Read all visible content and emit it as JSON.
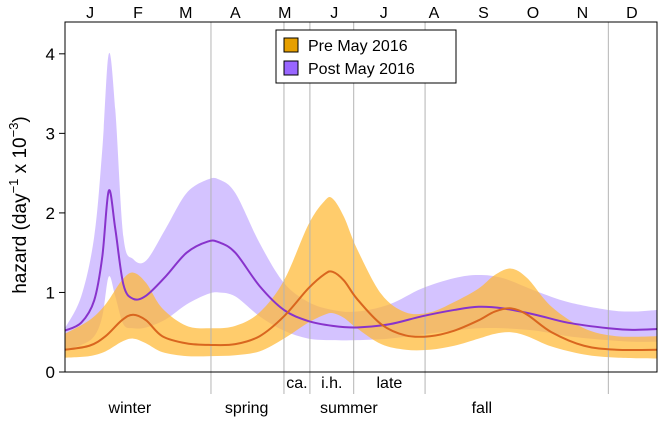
{
  "chart_data": {
    "type": "area",
    "ylabel": "hazard (day",
    "ylabel_sup1": "−1",
    "ylabel_mid": " x 10",
    "ylabel_sup2": "−3",
    "ylabel_end": ")",
    "xlim": [
      0,
      365
    ],
    "ylim": [
      0,
      4.4
    ],
    "yticks": [
      0,
      1,
      2,
      3,
      4
    ],
    "month_labels": [
      {
        "label": "J",
        "x": 15.5
      },
      {
        "label": "F",
        "x": 45
      },
      {
        "label": "M",
        "x": 74.5
      },
      {
        "label": "A",
        "x": 105
      },
      {
        "label": "M",
        "x": 135.5
      },
      {
        "label": "J",
        "x": 166
      },
      {
        "label": "J",
        "x": 196.5
      },
      {
        "label": "A",
        "x": 227.5
      },
      {
        "label": "S",
        "x": 258
      },
      {
        "label": "O",
        "x": 288.5
      },
      {
        "label": "N",
        "x": 319
      },
      {
        "label": "D",
        "x": 349.5
      }
    ],
    "season_boundaries": [
      90,
      135,
      151,
      178,
      222,
      335
    ],
    "subseason_labels": [
      {
        "label": "ca.",
        "x": 143
      },
      {
        "label": "i.h.",
        "x": 164.5
      },
      {
        "label": "late",
        "x": 200
      }
    ],
    "season_labels": [
      {
        "label": "winter",
        "x": 40
      },
      {
        "label": "spring",
        "x": 112
      },
      {
        "label": "summer",
        "x": 175
      },
      {
        "label": "fall",
        "x": 257
      }
    ],
    "legend": {
      "position": "top-center"
    },
    "series": [
      {
        "name": "Pre May 2016",
        "color": "#e69f00",
        "fill": "#ffb833",
        "line_color": "#d9661f",
        "points": [
          {
            "x": 0,
            "y": 0.28,
            "lo": 0.18,
            "hi": 0.48
          },
          {
            "x": 15,
            "y": 0.33,
            "lo": 0.2,
            "hi": 0.65
          },
          {
            "x": 25,
            "y": 0.45,
            "lo": 0.26,
            "hi": 0.85
          },
          {
            "x": 35,
            "y": 0.65,
            "lo": 0.38,
            "hi": 1.15
          },
          {
            "x": 42,
            "y": 0.72,
            "lo": 0.42,
            "hi": 1.25
          },
          {
            "x": 50,
            "y": 0.65,
            "lo": 0.36,
            "hi": 1.12
          },
          {
            "x": 60,
            "y": 0.45,
            "lo": 0.25,
            "hi": 0.8
          },
          {
            "x": 75,
            "y": 0.36,
            "lo": 0.2,
            "hi": 0.58
          },
          {
            "x": 90,
            "y": 0.34,
            "lo": 0.2,
            "hi": 0.55
          },
          {
            "x": 105,
            "y": 0.35,
            "lo": 0.21,
            "hi": 0.58
          },
          {
            "x": 120,
            "y": 0.45,
            "lo": 0.26,
            "hi": 0.75
          },
          {
            "x": 135,
            "y": 0.7,
            "lo": 0.42,
            "hi": 1.15
          },
          {
            "x": 150,
            "y": 1.05,
            "lo": 0.62,
            "hi": 1.85
          },
          {
            "x": 160,
            "y": 1.23,
            "lo": 0.72,
            "hi": 2.15
          },
          {
            "x": 165,
            "y": 1.26,
            "lo": 0.74,
            "hi": 2.18
          },
          {
            "x": 172,
            "y": 1.15,
            "lo": 0.68,
            "hi": 1.95
          },
          {
            "x": 180,
            "y": 0.92,
            "lo": 0.55,
            "hi": 1.55
          },
          {
            "x": 195,
            "y": 0.6,
            "lo": 0.35,
            "hi": 0.98
          },
          {
            "x": 210,
            "y": 0.46,
            "lo": 0.28,
            "hi": 0.75
          },
          {
            "x": 225,
            "y": 0.45,
            "lo": 0.28,
            "hi": 0.75
          },
          {
            "x": 240,
            "y": 0.52,
            "lo": 0.33,
            "hi": 0.88
          },
          {
            "x": 255,
            "y": 0.65,
            "lo": 0.42,
            "hi": 1.05
          },
          {
            "x": 265,
            "y": 0.76,
            "lo": 0.48,
            "hi": 1.22
          },
          {
            "x": 275,
            "y": 0.8,
            "lo": 0.5,
            "hi": 1.3
          },
          {
            "x": 285,
            "y": 0.72,
            "lo": 0.45,
            "hi": 1.18
          },
          {
            "x": 300,
            "y": 0.5,
            "lo": 0.32,
            "hi": 0.82
          },
          {
            "x": 320,
            "y": 0.33,
            "lo": 0.22,
            "hi": 0.55
          },
          {
            "x": 340,
            "y": 0.28,
            "lo": 0.18,
            "hi": 0.45
          },
          {
            "x": 365,
            "y": 0.28,
            "lo": 0.17,
            "hi": 0.45
          }
        ]
      },
      {
        "name": "Post May 2016",
        "color": "#9966ff",
        "fill": "#b89bff",
        "line_color": "#8833cc",
        "points": [
          {
            "x": 0,
            "y": 0.52,
            "lo": 0.28,
            "hi": 0.55
          },
          {
            "x": 10,
            "y": 0.62,
            "lo": 0.34,
            "hi": 0.95
          },
          {
            "x": 18,
            "y": 0.9,
            "lo": 0.45,
            "hi": 1.7
          },
          {
            "x": 23,
            "y": 1.45,
            "lo": 0.7,
            "hi": 2.8
          },
          {
            "x": 27,
            "y": 2.28,
            "lo": 1.2,
            "hi": 4.0
          },
          {
            "x": 31,
            "y": 1.8,
            "lo": 0.95,
            "hi": 3.3
          },
          {
            "x": 36,
            "y": 1.1,
            "lo": 0.6,
            "hi": 1.7
          },
          {
            "x": 42,
            "y": 0.92,
            "lo": 0.55,
            "hi": 1.42
          },
          {
            "x": 50,
            "y": 0.96,
            "lo": 0.56,
            "hi": 1.4
          },
          {
            "x": 62,
            "y": 1.2,
            "lo": 0.66,
            "hi": 1.8
          },
          {
            "x": 75,
            "y": 1.5,
            "lo": 0.85,
            "hi": 2.25
          },
          {
            "x": 88,
            "y": 1.64,
            "lo": 0.98,
            "hi": 2.42
          },
          {
            "x": 95,
            "y": 1.63,
            "lo": 1.0,
            "hi": 2.42
          },
          {
            "x": 105,
            "y": 1.5,
            "lo": 0.95,
            "hi": 2.25
          },
          {
            "x": 120,
            "y": 1.08,
            "lo": 0.7,
            "hi": 1.62
          },
          {
            "x": 135,
            "y": 0.78,
            "lo": 0.52,
            "hi": 1.12
          },
          {
            "x": 150,
            "y": 0.64,
            "lo": 0.42,
            "hi": 0.88
          },
          {
            "x": 165,
            "y": 0.58,
            "lo": 0.4,
            "hi": 0.78
          },
          {
            "x": 180,
            "y": 0.56,
            "lo": 0.4,
            "hi": 0.76
          },
          {
            "x": 200,
            "y": 0.6,
            "lo": 0.42,
            "hi": 0.85
          },
          {
            "x": 220,
            "y": 0.7,
            "lo": 0.47,
            "hi": 1.05
          },
          {
            "x": 240,
            "y": 0.78,
            "lo": 0.52,
            "hi": 1.18
          },
          {
            "x": 255,
            "y": 0.82,
            "lo": 0.55,
            "hi": 1.22
          },
          {
            "x": 270,
            "y": 0.8,
            "lo": 0.55,
            "hi": 1.18
          },
          {
            "x": 290,
            "y": 0.72,
            "lo": 0.52,
            "hi": 1.02
          },
          {
            "x": 310,
            "y": 0.62,
            "lo": 0.45,
            "hi": 0.88
          },
          {
            "x": 335,
            "y": 0.55,
            "lo": 0.4,
            "hi": 0.78
          },
          {
            "x": 350,
            "y": 0.53,
            "lo": 0.38,
            "hi": 0.76
          },
          {
            "x": 365,
            "y": 0.54,
            "lo": 0.38,
            "hi": 0.78
          }
        ]
      }
    ]
  }
}
